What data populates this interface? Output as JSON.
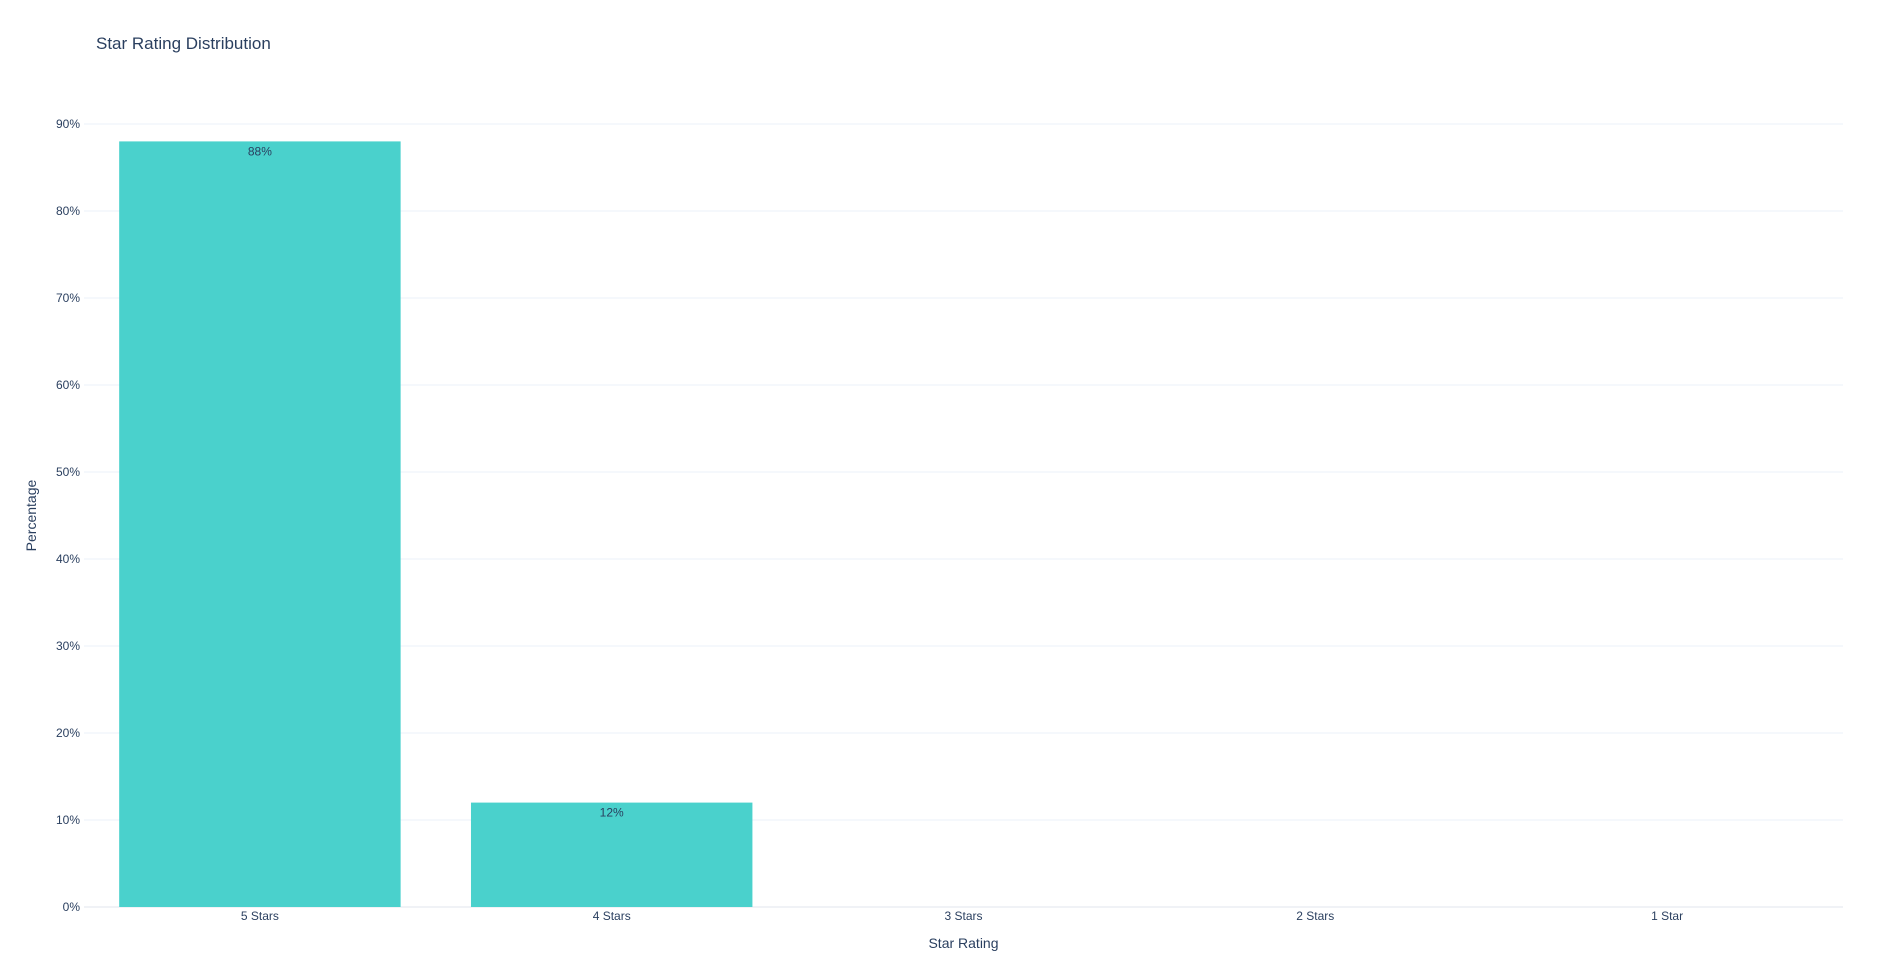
{
  "chart_data": {
    "type": "bar",
    "title": "Star Rating Distribution",
    "xlabel": "Star Rating",
    "ylabel": "Percentage",
    "categories": [
      "5 Stars",
      "4 Stars",
      "3 Stars",
      "2 Stars",
      "1 Star"
    ],
    "values": [
      88,
      12,
      0,
      0,
      0
    ],
    "data_labels": [
      "88%",
      "12%",
      "",
      "",
      ""
    ],
    "ylim": [
      0,
      90
    ],
    "y_ticks": [
      0,
      10,
      20,
      30,
      40,
      50,
      60,
      70,
      80,
      90
    ],
    "y_tick_labels": [
      "0%",
      "10%",
      "20%",
      "30%",
      "40%",
      "50%",
      "60%",
      "70%",
      "80%",
      "90%"
    ],
    "grid": true,
    "legend": "none",
    "bar_color": "#4ad1cc",
    "grid_color": "#ebf0f8",
    "text_color": "#2a3f5f"
  }
}
